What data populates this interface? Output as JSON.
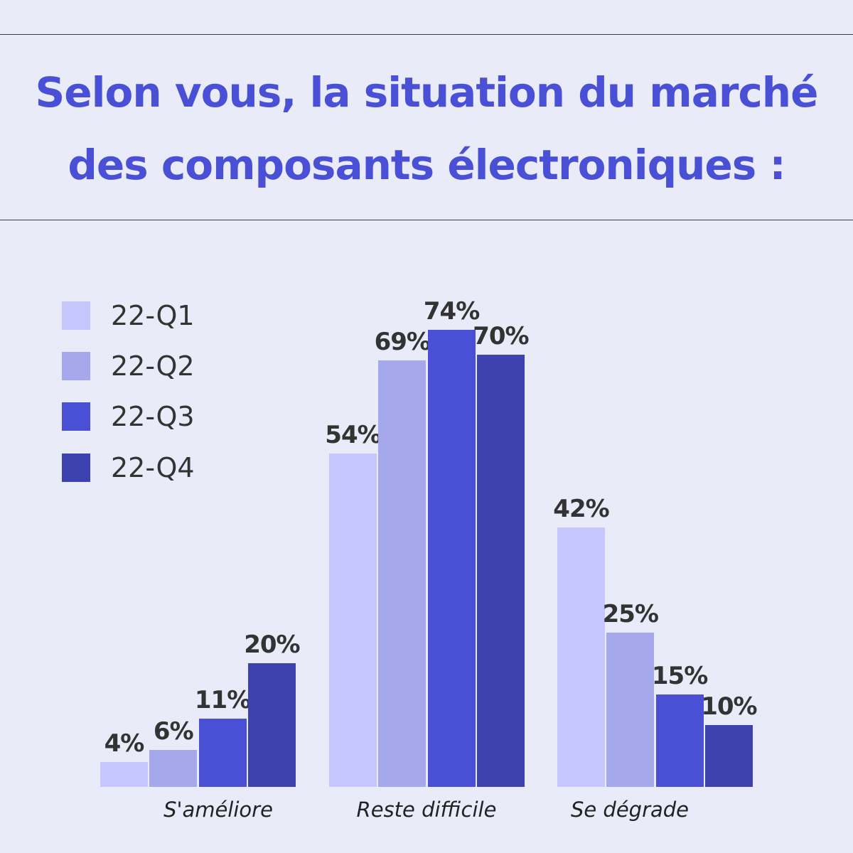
{
  "chart_data": {
    "type": "bar",
    "title": [
      "Selon vous, la situation du marché",
      "des composants électroniques :"
    ],
    "categories": [
      "S'améliore",
      "Reste difficile",
      "Se dégrade"
    ],
    "series": [
      {
        "name": "22-Q1",
        "color": "#c5c6fc",
        "values": [
          4,
          54,
          42
        ],
        "labels": [
          "4%",
          "54%",
          "42%"
        ]
      },
      {
        "name": "22-Q2",
        "color": "#a5a8ea",
        "values": [
          6,
          69,
          25
        ],
        "labels": [
          "6%",
          "69%",
          "25%"
        ]
      },
      {
        "name": "22-Q3",
        "color": "#4a50d6",
        "values": [
          11,
          74,
          15
        ],
        "labels": [
          "11%",
          "74%",
          "15%"
        ]
      },
      {
        "name": "22-Q4",
        "color": "#3c42b0",
        "values": [
          20,
          70,
          10
        ],
        "labels": [
          "20%",
          "70%",
          "10%"
        ]
      }
    ],
    "ylim": [
      0,
      80
    ],
    "unit": "%",
    "legend": "left",
    "grid": false
  }
}
